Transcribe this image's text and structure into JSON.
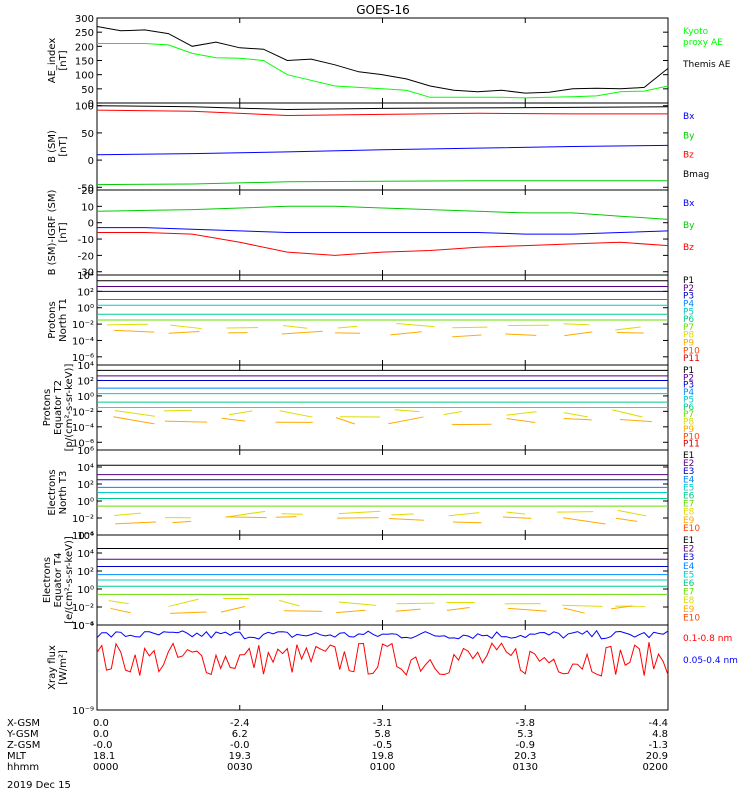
{
  "title": "GOES-16",
  "date_label": "2019 Dec 15",
  "ephemeris": {
    "row_labels": [
      "X-GSM",
      "Y-GSM",
      "Z-GSM",
      "MLT",
      "hhmm"
    ],
    "columns": [
      [
        "0.0",
        "0.0",
        "-0.0",
        "18.1",
        "0000"
      ],
      [
        "-2.4",
        "6.2",
        "-0.0",
        "19.3",
        "0030"
      ],
      [
        "-3.1",
        "5.8",
        "-0.5",
        "19.8",
        "0100"
      ],
      [
        "-3.8",
        "5.3",
        "-0.9",
        "20.3",
        "0130"
      ],
      [
        "-4.4",
        "4.8",
        "-1.3",
        "20.9",
        "0200"
      ]
    ]
  },
  "colors": {
    "black": "#000000",
    "green": "#00ff00",
    "blue": "#0000ff",
    "red": "#ff0000",
    "g_green": "#00cc00",
    "dark_red": "#cc0000",
    "channel_palette": [
      "#000000",
      "#550088",
      "#0000cc",
      "#0088ff",
      "#00cccc",
      "#00cc88",
      "#66dd00",
      "#dddd00",
      "#ffaa00",
      "#ff4400",
      "#dd0000"
    ]
  },
  "chart_data": [
    {
      "type": "line",
      "name": "ae-index",
      "ylabel": "AE_index\n[nT]",
      "ylim": [
        0,
        300
      ],
      "ticks": [
        "0",
        "50",
        "100",
        "150",
        "200",
        "250",
        "300"
      ],
      "tick_values": [
        0,
        50,
        100,
        150,
        200,
        250,
        300
      ],
      "legend": [
        {
          "text": "Kyoto\nproxy AE",
          "color": "#00ff00"
        },
        {
          "text": "Themis AE",
          "color": "#000000"
        }
      ],
      "series": [
        {
          "name": "Themis AE",
          "color": "#000000",
          "x": [
            0,
            5,
            10,
            15,
            20,
            25,
            30,
            35,
            40,
            45,
            50,
            55,
            60,
            65,
            70,
            75,
            80,
            85,
            90,
            95,
            100,
            105,
            110,
            115,
            120
          ],
          "values": [
            270,
            255,
            258,
            245,
            200,
            215,
            195,
            190,
            150,
            155,
            135,
            110,
            100,
            85,
            60,
            45,
            40,
            45,
            35,
            38,
            50,
            52,
            50,
            55,
            122
          ]
        },
        {
          "name": "Kyoto proxy AE",
          "color": "#00ff00",
          "x": [
            0,
            5,
            10,
            15,
            20,
            25,
            30,
            35,
            40,
            45,
            50,
            55,
            60,
            65,
            70,
            75,
            80,
            85,
            90,
            95,
            100,
            105,
            110,
            115,
            120
          ],
          "values": [
            210,
            210,
            210,
            205,
            175,
            160,
            158,
            150,
            100,
            80,
            60,
            55,
            50,
            45,
            20,
            20,
            20,
            20,
            18,
            20,
            22,
            25,
            40,
            42,
            60
          ]
        }
      ]
    },
    {
      "type": "line",
      "name": "b-sm",
      "ylabel": "B (SM)\n[nT]",
      "ylim": [
        -55,
        105
      ],
      "ticks": [
        "-50",
        "0",
        "50",
        "100"
      ],
      "tick_values": [
        -50,
        0,
        50,
        100
      ],
      "legend": [
        {
          "text": "Bx",
          "color": "#0000ff"
        },
        {
          "text": "By",
          "color": "#00cc00"
        },
        {
          "text": "Bz",
          "color": "#ff0000"
        },
        {
          "text": "Bmag",
          "color": "#000000"
        }
      ],
      "series": [
        {
          "name": "Bmag",
          "color": "#000000",
          "x": [
            0,
            20,
            40,
            60,
            80,
            100,
            120
          ],
          "values": [
            100,
            98,
            93,
            95,
            96,
            97,
            98
          ]
        },
        {
          "name": "Bz",
          "color": "#ff0000",
          "x": [
            0,
            20,
            40,
            60,
            80,
            100,
            120
          ],
          "values": [
            92,
            90,
            82,
            84,
            86,
            85,
            85
          ]
        },
        {
          "name": "Bx",
          "color": "#0000ff",
          "x": [
            0,
            20,
            40,
            60,
            80,
            100,
            120
          ],
          "values": [
            10,
            12,
            15,
            19,
            22,
            25,
            27
          ]
        },
        {
          "name": "By",
          "color": "#00cc00",
          "x": [
            0,
            20,
            40,
            60,
            80,
            100,
            120
          ],
          "values": [
            -45,
            -44,
            -40,
            -39,
            -38,
            -38,
            -38
          ]
        }
      ]
    },
    {
      "type": "line",
      "name": "b-sm-igrf",
      "ylabel": "B (SM)-IGRF (SM)\n[nT]",
      "ylim": [
        -32,
        20
      ],
      "ticks": [
        "-30",
        "-20",
        "-10",
        "0",
        "10",
        "20"
      ],
      "tick_values": [
        -30,
        -20,
        -10,
        0,
        10,
        20
      ],
      "legend": [
        {
          "text": "Bx",
          "color": "#0000ff"
        },
        {
          "text": "By",
          "color": "#00cc00"
        },
        {
          "text": "Bz",
          "color": "#ff0000"
        }
      ],
      "series": [
        {
          "name": "By",
          "color": "#00cc00",
          "x": [
            0,
            10,
            20,
            30,
            40,
            50,
            60,
            70,
            80,
            90,
            100,
            110,
            120
          ],
          "values": [
            7,
            7.5,
            8,
            9,
            10,
            10,
            9,
            8,
            7,
            6,
            6,
            4,
            2
          ]
        },
        {
          "name": "Bx",
          "color": "#0000ff",
          "x": [
            0,
            10,
            20,
            30,
            40,
            50,
            60,
            70,
            80,
            90,
            100,
            110,
            120
          ],
          "values": [
            -3,
            -3,
            -4,
            -5,
            -6,
            -6,
            -6,
            -6,
            -6,
            -7,
            -7,
            -6,
            -5
          ]
        },
        {
          "name": "Bz",
          "color": "#ff0000",
          "x": [
            0,
            10,
            20,
            30,
            40,
            50,
            60,
            70,
            80,
            90,
            100,
            110,
            120
          ],
          "values": [
            -6,
            -6,
            -7,
            -12,
            -18,
            -20,
            -18,
            -17,
            -15,
            -14,
            -13,
            -12,
            -14
          ]
        }
      ]
    },
    {
      "type": "line",
      "name": "protons-north-t1",
      "ylabel": "Protons\nNorth T1",
      "log": true,
      "ylim_exp": [
        -7,
        4
      ],
      "ticks": [
        "10⁴",
        "10²",
        "10⁰",
        "10⁻²",
        "10⁻⁴",
        "10⁻⁶"
      ],
      "tick_values": [
        4,
        2,
        0,
        -2,
        -4,
        -6
      ],
      "legend": [
        "P1",
        "P2",
        "P3",
        "P4",
        "P5",
        "P6",
        "P7",
        "P8",
        "P9",
        "P10",
        "P11"
      ],
      "levels_exp": [
        3.3,
        2.6,
        2.0,
        1.0,
        0.3,
        -0.8,
        -1.5,
        -2.3,
        -3.2
      ]
    },
    {
      "type": "line",
      "name": "protons-equator-t2",
      "ylabel": "Protons\nEquator T2\n[p/(cm²-s-sr-keV)]",
      "log": true,
      "ylim_exp": [
        -7,
        4
      ],
      "ticks": [
        "10⁴",
        "10²",
        "10⁰",
        "10⁻²",
        "10⁻⁴",
        "10⁻⁶"
      ],
      "tick_values": [
        4,
        2,
        0,
        -2,
        -4,
        -6
      ],
      "legend": [
        "P1",
        "P2",
        "P3",
        "P4",
        "P5",
        "P6",
        "P7",
        "P8",
        "P9",
        "P10",
        "P11"
      ],
      "levels_exp": [
        3.3,
        2.6,
        2.0,
        1.0,
        0.3,
        -0.8,
        -1.5,
        -2.3,
        -3.2
      ]
    },
    {
      "type": "line",
      "name": "electrons-north-t3",
      "ylabel": "Electrons\nNorth T3",
      "log": true,
      "ylim_exp": [
        -4,
        6
      ],
      "ticks": [
        "10⁶",
        "10⁴",
        "10²",
        "10⁰",
        "10⁻²",
        "10⁻⁴"
      ],
      "tick_values": [
        6,
        4,
        2,
        0,
        -2,
        -4
      ],
      "legend": [
        "E1",
        "E2",
        "E3",
        "E4",
        "E5",
        "E6",
        "E7",
        "E8",
        "E9",
        "E10"
      ],
      "levels_exp": [
        4.2,
        3.1,
        2.5,
        1.6,
        1.0,
        0.3,
        -0.6,
        -1.5,
        -2.3
      ]
    },
    {
      "type": "line",
      "name": "electrons-equator-t4",
      "ylabel": "Electrons\nEquator T4\n[e/(cm²-s-sr-keV)]",
      "log": true,
      "ylim_exp": [
        -4,
        6
      ],
      "ticks": [
        "10⁶",
        "10⁴",
        "10²",
        "10⁰",
        "10⁻²",
        "10⁻⁴"
      ],
      "tick_values": [
        6,
        4,
        2,
        0,
        -2,
        -4
      ],
      "legend": [
        "E1",
        "E2",
        "E3",
        "E4",
        "E5",
        "E6",
        "E7",
        "E8",
        "E9",
        "E10"
      ],
      "levels_exp": [
        4.5,
        3.3,
        2.5,
        1.6,
        1.0,
        0.3,
        -0.6,
        -1.5,
        -2.3
      ]
    },
    {
      "type": "line",
      "name": "xray-flux",
      "ylabel": "Xray flux\n[W/m²]",
      "log": true,
      "ylim_exp": [
        -9,
        -6
      ],
      "ticks": [
        "10⁻⁶",
        "10⁻⁹"
      ],
      "tick_values": [
        -6,
        -9
      ],
      "legend": [
        {
          "text": "0.1-0.8 nm",
          "color": "#ff0000"
        },
        {
          "text": "0.05-0.4 nm",
          "color": "#0000ff"
        }
      ],
      "series": [
        {
          "name": "0.1-0.8 nm",
          "color": "#ff0000",
          "mean_exp": -7.2,
          "spread": 0.6
        },
        {
          "name": "0.05-0.4 nm",
          "color": "#0000ff",
          "mean_exp": -6.35,
          "spread": 0.15
        }
      ]
    }
  ]
}
